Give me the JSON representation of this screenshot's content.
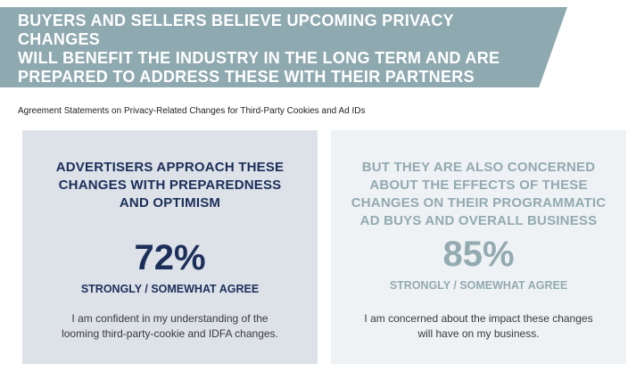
{
  "banner": {
    "title": "BUYERS AND SELLERS BELIEVE UPCOMING PRIVACY CHANGES\nWILL BENEFIT THE INDUSTRY IN THE LONG TERM AND ARE\nPREPARED TO ADDRESS THESE WITH THEIR PARTNERS",
    "background_color": "#8fa9b0",
    "text_color": "#ffffff"
  },
  "subtitle": "Agreement Statements on Privacy-Related Changes for Third-Party Cookies and Ad IDs",
  "panels": [
    {
      "heading": "ADVERTISERS APPROACH THESE\nCHANGES WITH PREPAREDNESS\nAND OPTIMISM",
      "percent": "72%",
      "agree_label": "STRONGLY / SOMEWHAT AGREE",
      "statement": "I am confident in my understanding of the\nlooming third-party-cookie and IDFA changes.",
      "background_color": "#dde1e8",
      "accent_color": "#1b2f5a"
    },
    {
      "heading": "BUT THEY ARE ALSO CONCERNED\nABOUT THE EFFECTS OF THESE\nCHANGES ON THEIR PROGRAMMATIC\nAD BUYS AND OVERALL BUSINESS",
      "percent": "85%",
      "agree_label": "STRONGLY / SOMEWHAT AGREE",
      "statement": "I am concerned about the impact these changes\nwill have on my business.",
      "background_color": "#eef2f4",
      "accent_color": "#93aab1"
    }
  ]
}
